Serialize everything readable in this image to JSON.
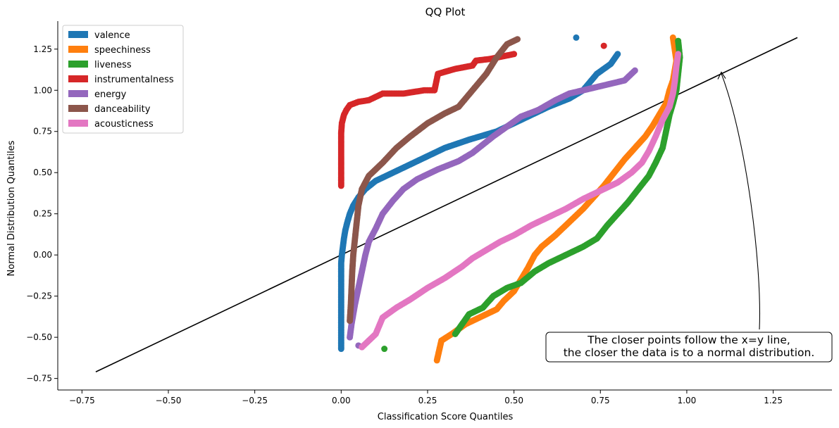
{
  "chart_data": {
    "type": "scatter",
    "title": "QQ Plot",
    "xlabel": "Classification Score Quantiles",
    "ylabel": "Normal Distribution Quantiles",
    "xlim": [
      -0.82,
      1.42
    ],
    "ylim": [
      -0.82,
      1.42
    ],
    "xticks": [
      -0.75,
      -0.5,
      -0.25,
      0.0,
      0.25,
      0.5,
      0.75,
      1.0,
      1.25
    ],
    "xtick_labels": [
      "−0.75",
      "−0.50",
      "−0.25",
      "0.00",
      "0.25",
      "0.50",
      "0.75",
      "1.00",
      "1.25"
    ],
    "yticks": [
      -0.75,
      -0.5,
      -0.25,
      0.0,
      0.25,
      0.5,
      0.75,
      1.0,
      1.25
    ],
    "ytick_labels": [
      "−0.75",
      "−0.50",
      "−0.25",
      "0.00",
      "0.25",
      "0.50",
      "0.75",
      "1.00",
      "1.25"
    ],
    "grid": false,
    "legend_position": "top-left",
    "reference_line": {
      "x": [
        -0.71,
        1.32
      ],
      "y": [
        -0.71,
        1.32
      ],
      "color": "#000000"
    },
    "annotation": {
      "lines": [
        "The closer points follow the x=y line,",
        "the closer the data is to a normal distribution."
      ],
      "arrow_to": [
        1.1,
        1.11
      ]
    },
    "series": [
      {
        "name": "valence",
        "color": "#1f77b4",
        "points": [
          [
            0.0,
            -0.57
          ],
          [
            0.0,
            -0.47
          ],
          [
            0.0,
            -0.4
          ],
          [
            0.0,
            -0.3
          ],
          [
            0.0,
            -0.2
          ],
          [
            0.0,
            -0.1
          ],
          [
            0.0,
            -0.05
          ],
          [
            0.002,
            0.0
          ],
          [
            0.005,
            0.05
          ],
          [
            0.008,
            0.1
          ],
          [
            0.012,
            0.15
          ],
          [
            0.018,
            0.2
          ],
          [
            0.025,
            0.25
          ],
          [
            0.035,
            0.3
          ],
          [
            0.05,
            0.35
          ],
          [
            0.07,
            0.4
          ],
          [
            0.1,
            0.45
          ],
          [
            0.15,
            0.5
          ],
          [
            0.2,
            0.55
          ],
          [
            0.25,
            0.6
          ],
          [
            0.3,
            0.65
          ],
          [
            0.37,
            0.7
          ],
          [
            0.45,
            0.75
          ],
          [
            0.5,
            0.8
          ],
          [
            0.55,
            0.85
          ],
          [
            0.6,
            0.9
          ],
          [
            0.66,
            0.95
          ],
          [
            0.7,
            1.0
          ],
          [
            0.72,
            1.05
          ],
          [
            0.74,
            1.1
          ],
          [
            0.78,
            1.16
          ],
          [
            0.8,
            1.22
          ],
          [
            0.68,
            1.32
          ]
        ]
      },
      {
        "name": "speechiness",
        "color": "#ff7f0e",
        "points": [
          [
            0.277,
            -0.64
          ],
          [
            0.29,
            -0.52
          ],
          [
            0.32,
            -0.48
          ],
          [
            0.36,
            -0.42
          ],
          [
            0.4,
            -0.38
          ],
          [
            0.45,
            -0.33
          ],
          [
            0.47,
            -0.28
          ],
          [
            0.5,
            -0.22
          ],
          [
            0.52,
            -0.15
          ],
          [
            0.54,
            -0.08
          ],
          [
            0.56,
            0.0
          ],
          [
            0.58,
            0.05
          ],
          [
            0.62,
            0.12
          ],
          [
            0.66,
            0.2
          ],
          [
            0.7,
            0.28
          ],
          [
            0.73,
            0.35
          ],
          [
            0.76,
            0.42
          ],
          [
            0.79,
            0.5
          ],
          [
            0.82,
            0.58
          ],
          [
            0.85,
            0.65
          ],
          [
            0.88,
            0.72
          ],
          [
            0.9,
            0.78
          ],
          [
            0.92,
            0.85
          ],
          [
            0.94,
            0.92
          ],
          [
            0.95,
            1.0
          ],
          [
            0.96,
            1.06
          ],
          [
            0.965,
            1.12
          ],
          [
            0.97,
            1.18
          ],
          [
            0.96,
            1.32
          ]
        ]
      },
      {
        "name": "liveness",
        "color": "#2ca02c",
        "points": [
          [
            0.125,
            -0.57
          ],
          [
            0.33,
            -0.48
          ],
          [
            0.37,
            -0.36
          ],
          [
            0.41,
            -0.32
          ],
          [
            0.44,
            -0.25
          ],
          [
            0.48,
            -0.2
          ],
          [
            0.52,
            -0.17
          ],
          [
            0.56,
            -0.1
          ],
          [
            0.6,
            -0.05
          ],
          [
            0.65,
            0.0
          ],
          [
            0.7,
            0.05
          ],
          [
            0.74,
            0.1
          ],
          [
            0.77,
            0.18
          ],
          [
            0.8,
            0.25
          ],
          [
            0.83,
            0.32
          ],
          [
            0.86,
            0.4
          ],
          [
            0.89,
            0.48
          ],
          [
            0.91,
            0.56
          ],
          [
            0.93,
            0.65
          ],
          [
            0.94,
            0.75
          ],
          [
            0.95,
            0.85
          ],
          [
            0.96,
            0.92
          ],
          [
            0.97,
            1.0
          ],
          [
            0.975,
            1.1
          ],
          [
            0.98,
            1.2
          ],
          [
            0.975,
            1.3
          ]
        ]
      },
      {
        "name": "instrumentalness",
        "color": "#d62728",
        "points": [
          [
            0.0,
            0.42
          ],
          [
            0.0,
            0.48
          ],
          [
            0.0,
            0.55
          ],
          [
            0.0,
            0.62
          ],
          [
            0.0,
            0.68
          ],
          [
            0.0,
            0.74
          ],
          [
            0.002,
            0.8
          ],
          [
            0.008,
            0.85
          ],
          [
            0.015,
            0.88
          ],
          [
            0.025,
            0.91
          ],
          [
            0.05,
            0.93
          ],
          [
            0.08,
            0.94
          ],
          [
            0.1,
            0.96
          ],
          [
            0.12,
            0.98
          ],
          [
            0.15,
            0.98
          ],
          [
            0.18,
            0.98
          ],
          [
            0.24,
            1.0
          ],
          [
            0.27,
            1.0
          ],
          [
            0.28,
            1.1
          ],
          [
            0.33,
            1.13
          ],
          [
            0.38,
            1.15
          ],
          [
            0.39,
            1.18
          ],
          [
            0.43,
            1.19
          ],
          [
            0.5,
            1.22
          ],
          [
            0.76,
            1.27
          ]
        ]
      },
      {
        "name": "energy",
        "color": "#9467bd",
        "points": [
          [
            0.025,
            -0.5
          ],
          [
            0.03,
            -0.42
          ],
          [
            0.04,
            -0.3
          ],
          [
            0.05,
            -0.2
          ],
          [
            0.06,
            -0.1
          ],
          [
            0.07,
            0.0
          ],
          [
            0.08,
            0.08
          ],
          [
            0.1,
            0.16
          ],
          [
            0.12,
            0.25
          ],
          [
            0.15,
            0.33
          ],
          [
            0.18,
            0.4
          ],
          [
            0.22,
            0.46
          ],
          [
            0.28,
            0.52
          ],
          [
            0.34,
            0.57
          ],
          [
            0.38,
            0.62
          ],
          [
            0.41,
            0.67
          ],
          [
            0.44,
            0.72
          ],
          [
            0.48,
            0.78
          ],
          [
            0.52,
            0.84
          ],
          [
            0.57,
            0.88
          ],
          [
            0.62,
            0.94
          ],
          [
            0.66,
            0.98
          ],
          [
            0.7,
            1.0
          ],
          [
            0.74,
            1.02
          ],
          [
            0.78,
            1.04
          ],
          [
            0.82,
            1.06
          ],
          [
            0.85,
            1.12
          ],
          [
            0.05,
            -0.55
          ]
        ]
      },
      {
        "name": "danceability",
        "color": "#8c564b",
        "points": [
          [
            0.025,
            -0.4
          ],
          [
            0.028,
            -0.3
          ],
          [
            0.03,
            -0.2
          ],
          [
            0.032,
            -0.1
          ],
          [
            0.035,
            0.0
          ],
          [
            0.04,
            0.1
          ],
          [
            0.045,
            0.2
          ],
          [
            0.05,
            0.3
          ],
          [
            0.06,
            0.4
          ],
          [
            0.08,
            0.48
          ],
          [
            0.12,
            0.56
          ],
          [
            0.16,
            0.65
          ],
          [
            0.2,
            0.72
          ],
          [
            0.25,
            0.8
          ],
          [
            0.3,
            0.86
          ],
          [
            0.34,
            0.9
          ],
          [
            0.36,
            0.95
          ],
          [
            0.38,
            1.0
          ],
          [
            0.4,
            1.05
          ],
          [
            0.42,
            1.1
          ],
          [
            0.45,
            1.2
          ],
          [
            0.48,
            1.28
          ],
          [
            0.51,
            1.31
          ]
        ]
      },
      {
        "name": "acousticness",
        "color": "#e377c2",
        "points": [
          [
            0.06,
            -0.56
          ],
          [
            0.1,
            -0.48
          ],
          [
            0.12,
            -0.38
          ],
          [
            0.16,
            -0.32
          ],
          [
            0.2,
            -0.27
          ],
          [
            0.25,
            -0.2
          ],
          [
            0.3,
            -0.14
          ],
          [
            0.35,
            -0.07
          ],
          [
            0.38,
            -0.02
          ],
          [
            0.42,
            0.03
          ],
          [
            0.46,
            0.08
          ],
          [
            0.5,
            0.12
          ],
          [
            0.55,
            0.18
          ],
          [
            0.6,
            0.23
          ],
          [
            0.65,
            0.28
          ],
          [
            0.7,
            0.34
          ],
          [
            0.75,
            0.39
          ],
          [
            0.8,
            0.44
          ],
          [
            0.84,
            0.5
          ],
          [
            0.87,
            0.56
          ],
          [
            0.89,
            0.63
          ],
          [
            0.91,
            0.72
          ],
          [
            0.93,
            0.82
          ],
          [
            0.95,
            0.9
          ],
          [
            0.96,
            0.98
          ],
          [
            0.965,
            1.05
          ],
          [
            0.97,
            1.15
          ],
          [
            0.975,
            1.22
          ]
        ]
      }
    ]
  }
}
